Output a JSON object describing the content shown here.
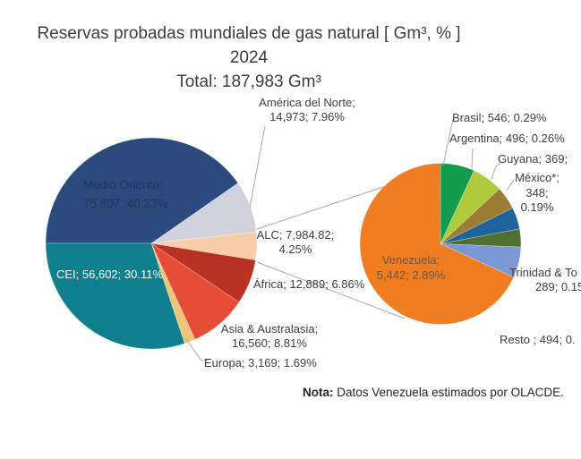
{
  "title": {
    "line1": "Reservas probadas mundiales de gas natural [ Gm³, % ]",
    "line2": "2024",
    "line3": "Total: 187,983 Gm³"
  },
  "note": {
    "prefix": "Nota:",
    "text": " Datos Venezuela estimados por OLACDE."
  },
  "colors": {
    "leader_line": "#a8a8b0",
    "label_text": "#404040",
    "medio_oriente_text": "#1d3865",
    "cei_text": "#ffffff",
    "venezuela_text": "#6b5846"
  },
  "chart_data": {
    "type": "pie",
    "subtype": "pie-of-pie",
    "title": "Reservas probadas mundiales de gas natural [ Gm³, % ]",
    "year": "2024",
    "total_value": "187,983",
    "unit": "Gm³",
    "main_pie": {
      "slices": [
        {
          "id": "medio-oriente",
          "name": "Medio Oriente",
          "value": 75807,
          "pct": "40.33%",
          "color": "#2b4a7d"
        },
        {
          "id": "america-del-norte",
          "name": "América del Norte",
          "value": 14973,
          "pct": "7.96%",
          "color": "#d2d1de"
        },
        {
          "id": "alc",
          "name": "ALC",
          "value": 7984.82,
          "pct": "4.25%",
          "color": "#f9cda8"
        },
        {
          "id": "africa",
          "name": "África",
          "value": 12889,
          "pct": "6.86%",
          "color": "#b93123"
        },
        {
          "id": "asia-australasia",
          "name": "Asia & Australasia",
          "value": 16560,
          "pct": "8.81%",
          "color": "#e74c38"
        },
        {
          "id": "europa",
          "name": "Europa",
          "value": 3169,
          "pct": "1.69%",
          "color": "#efc678"
        },
        {
          "id": "cei",
          "name": "CEI",
          "value": 56602,
          "pct": "30.11%",
          "color": "#10808e"
        }
      ]
    },
    "detail_pie": {
      "represents": "ALC",
      "slices": [
        {
          "id": "brasil",
          "name": "Brasil",
          "value": 546,
          "pct": "0.29%",
          "color": "#149c4d"
        },
        {
          "id": "argentina",
          "name": "Argentina",
          "value": 496,
          "pct": "0.26%",
          "color": "#afcb3c"
        },
        {
          "id": "guyana",
          "name": "Guyana",
          "value": 369,
          "pct": "",
          "color": "#9c7b33"
        },
        {
          "id": "mexico",
          "name": "México*",
          "value": 348,
          "pct": "0.19%",
          "color": "#1f639e"
        },
        {
          "id": "trinidad-tobago",
          "name": "Trinidad & To",
          "value": 289,
          "pct": "0.1",
          "color": "#50702f"
        },
        {
          "id": "resto",
          "name": "Resto",
          "value": 494,
          "pct": "0.",
          "color": "#7b97d4"
        },
        {
          "id": "venezuela",
          "name": "Venezuela",
          "value": 5442,
          "pct": "2.89%",
          "color": "#f07d22"
        }
      ]
    }
  },
  "labels": {
    "medio_oriente": {
      "lines": [
        "Medio Oriente;",
        "75,807; 40.33%"
      ]
    },
    "cei": {
      "lines": [
        "CEI; 56,602; 30.11%"
      ]
    },
    "america": {
      "lines": [
        "América del Norte;",
        "14,973; 7.96%"
      ]
    },
    "alc": {
      "lines": [
        "ALC; 7,984.82;",
        "4.25%"
      ]
    },
    "africa": {
      "lines": [
        "África; 12,889; 6.86%"
      ]
    },
    "asia": {
      "lines": [
        "Asia & Australasia;",
        "16,560; 8.81%"
      ]
    },
    "europa": {
      "lines": [
        "Europa; 3,169; 1.69%"
      ]
    },
    "venezuela": {
      "lines": [
        "Venezuela;",
        "5,442; 2.89%"
      ]
    },
    "brasil": {
      "lines": [
        "Brasil; 546; 0.29%"
      ]
    },
    "argentina": {
      "lines": [
        "Argentina; 496; 0.26%"
      ]
    },
    "guyana": {
      "lines": [
        "Guyana; 369;"
      ]
    },
    "mexico": {
      "lines": [
        "México*;",
        "348;",
        "0.19%"
      ]
    },
    "trinidad": {
      "lines": [
        "Trinidad & To",
        "289; 0.15"
      ]
    },
    "resto": {
      "lines": [
        "Resto ; 494; 0."
      ]
    }
  }
}
